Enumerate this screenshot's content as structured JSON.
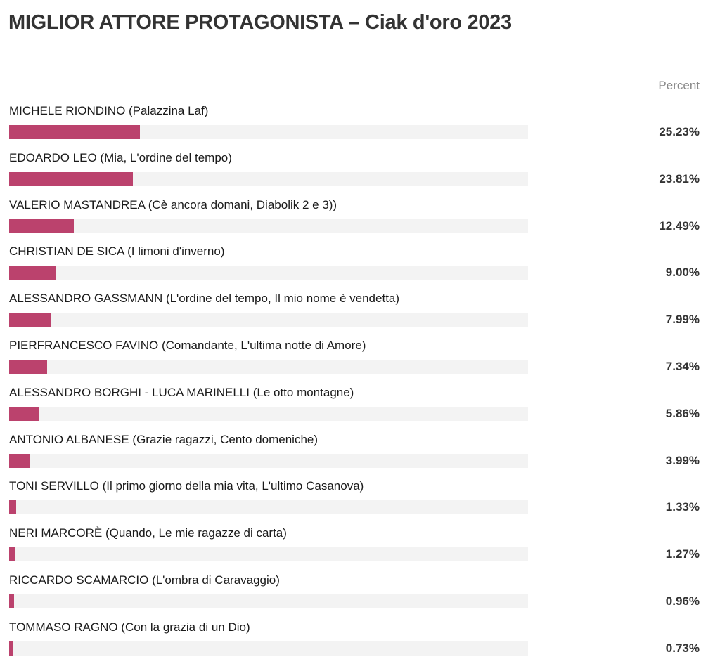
{
  "chart_data": {
    "type": "bar",
    "orientation": "horizontal",
    "title": "MIGLIOR ATTORE PROTAGONISTA – Ciak d'oro 2023",
    "value_header": "Percent",
    "xlim": [
      0,
      100
    ],
    "grid": false,
    "legend": "none",
    "bar_color": "#bb426d",
    "track_color": "#f3f3f3",
    "rows": [
      {
        "label": "MICHELE RIONDINO (Palazzina Laf)",
        "value": 25.23,
        "value_label": "25.23%"
      },
      {
        "label": "EDOARDO LEO (Mia, L'ordine del tempo)",
        "value": 23.81,
        "value_label": "23.81%"
      },
      {
        "label": "VALERIO MASTANDREA (Cè ancora domani, Diabolik 2 e 3))",
        "value": 12.49,
        "value_label": "12.49%"
      },
      {
        "label": "CHRISTIAN DE SICA (I limoni d'inverno)",
        "value": 9.0,
        "value_label": "9.00%"
      },
      {
        "label": "ALESSANDRO GASSMANN (L'ordine del tempo, Il mio nome è vendetta)",
        "value": 7.99,
        "value_label": "7.99%"
      },
      {
        "label": "PIERFRANCESCO FAVINO (Comandante, L'ultima notte di Amore)",
        "value": 7.34,
        "value_label": "7.34%"
      },
      {
        "label": "ALESSANDRO BORGHI - LUCA MARINELLI (Le otto montagne)",
        "value": 5.86,
        "value_label": "5.86%"
      },
      {
        "label": "ANTONIO ALBANESE (Grazie ragazzi, Cento domeniche)",
        "value": 3.99,
        "value_label": "3.99%"
      },
      {
        "label": "TONI SERVILLO (Il primo giorno della mia vita, L'ultimo Casanova)",
        "value": 1.33,
        "value_label": "1.33%"
      },
      {
        "label": "NERI MARCORÈ (Quando, Le mie ragazze di carta)",
        "value": 1.27,
        "value_label": "1.27%"
      },
      {
        "label": "RICCARDO SCAMARCIO (L'ombra di Caravaggio)",
        "value": 0.96,
        "value_label": "0.96%"
      },
      {
        "label": "TOMMASO RAGNO (Con la grazia di un Dio)",
        "value": 0.73,
        "value_label": "0.73%"
      }
    ]
  }
}
